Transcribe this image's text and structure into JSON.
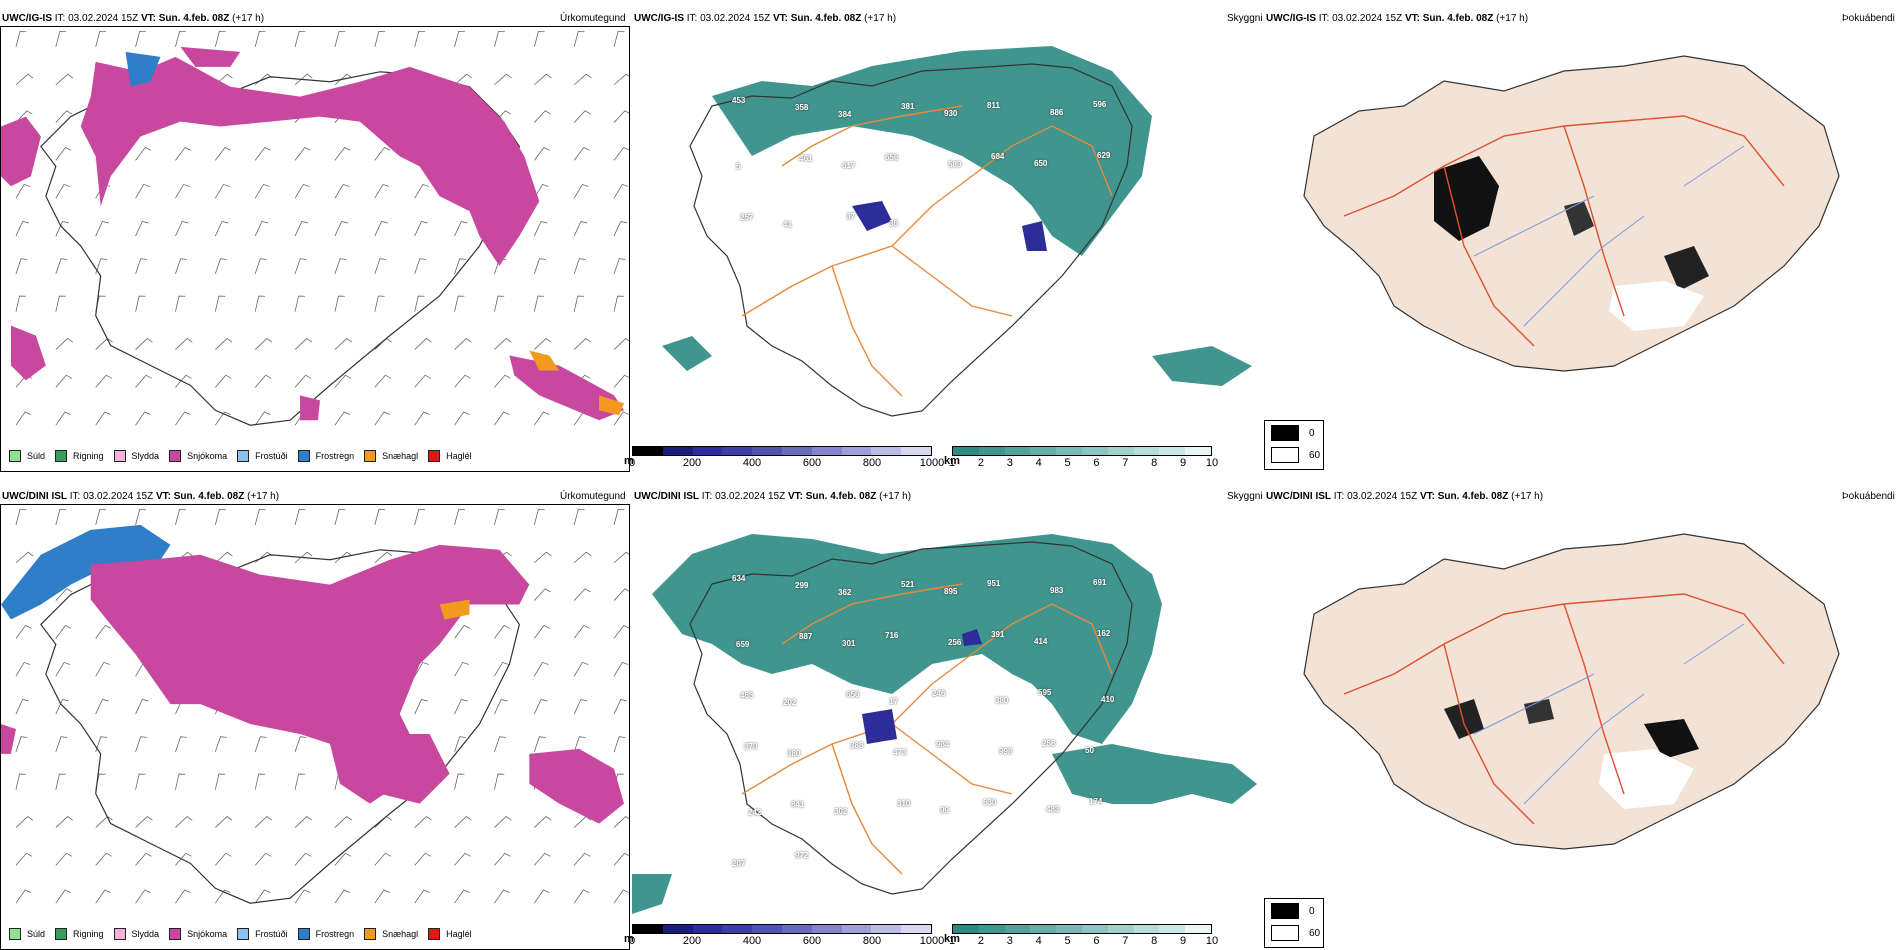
{
  "rows": [
    {
      "model": "UWC/IG-IS",
      "it_label": "IT:",
      "it_value": "03.02.2024 15Z",
      "vt_label": "VT:",
      "vt_value": "Sun. 4.feb. 08Z",
      "lead": "(+17 h)",
      "panels": {
        "precip": "Úrkomutegund",
        "cloud": "Skyggni",
        "fog": "Þokuábendi"
      },
      "height_labels": [
        "453",
        "358",
        "384",
        "381",
        "930",
        "811",
        "886",
        "596",
        "5",
        "461",
        "617",
        "656",
        "589",
        "684",
        "650",
        "629",
        "257",
        "41",
        "37",
        "36"
      ]
    },
    {
      "model": "UWC/DINI ISL",
      "it_label": "IT:",
      "it_value": "03.02.2024 15Z",
      "vt_label": "VT:",
      "vt_value": "Sun. 4.feb. 08Z",
      "lead": "(+17 h)",
      "panels": {
        "precip": "Úrkomutegund",
        "cloud": "Skyggni",
        "fog": "Þokuábendi"
      },
      "height_labels": [
        "634",
        "299",
        "362",
        "521",
        "895",
        "951",
        "983",
        "691",
        "659",
        "887",
        "301",
        "716",
        "256",
        "391",
        "414",
        "162",
        "465",
        "202",
        "656",
        "17",
        "246",
        "380",
        "595",
        "410",
        "370",
        "380",
        "388",
        "473",
        "984",
        "998",
        "258",
        "50",
        "242",
        "841",
        "302",
        "310",
        "99",
        "630",
        "483",
        "174",
        "207",
        "972"
      ]
    }
  ],
  "precip_legend": [
    {
      "label": "Súld",
      "color": "#8fe08f"
    },
    {
      "label": "Rigning",
      "color": "#3b9a5c"
    },
    {
      "label": "Slydda",
      "color": "#f4b3d8"
    },
    {
      "label": "Snjókoma",
      "color": "#c9489f"
    },
    {
      "label": "Frostúði",
      "color": "#8cc2f2"
    },
    {
      "label": "Frostregn",
      "color": "#2f7fc8"
    },
    {
      "label": "Snæhagl",
      "color": "#f29a1f"
    },
    {
      "label": "Haglél",
      "color": "#e01818"
    }
  ],
  "cloudbase_bar": {
    "unit": "m",
    "ticks": [
      "0",
      "200",
      "400",
      "600",
      "800",
      "1000"
    ],
    "colors": [
      "#000000",
      "#1c1c7a",
      "#2d2d99",
      "#3e3ea8",
      "#5252b3",
      "#6a6abf",
      "#8484cb",
      "#a0a0d8",
      "#bcbce4",
      "#d8d8f0"
    ]
  },
  "visibility_bar": {
    "unit": "km",
    "ticks": [
      "1",
      "2",
      "3",
      "4",
      "5",
      "6",
      "7",
      "8",
      "9",
      "10"
    ],
    "colors": [
      "#2b8a82",
      "#3f968f",
      "#52a29b",
      "#66aea8",
      "#79bab4",
      "#8dc6c1",
      "#a1d2cd",
      "#b5ddda",
      "#c9e9e6",
      "#eaf6f5"
    ]
  },
  "fog_legend": {
    "max": "0",
    "min": "60"
  },
  "colors": {
    "snow": "#c9489f",
    "frostregn": "#2f7fc8",
    "snaehagl": "#f29a1f",
    "visibility_teal": "#2b8a82",
    "cloudbase_blue": "#2d2d99",
    "roads": "#e8893a",
    "fog_land": "#f3e3d6",
    "fog_roads": "#e05030",
    "fog_rivers": "#7c98e8"
  }
}
